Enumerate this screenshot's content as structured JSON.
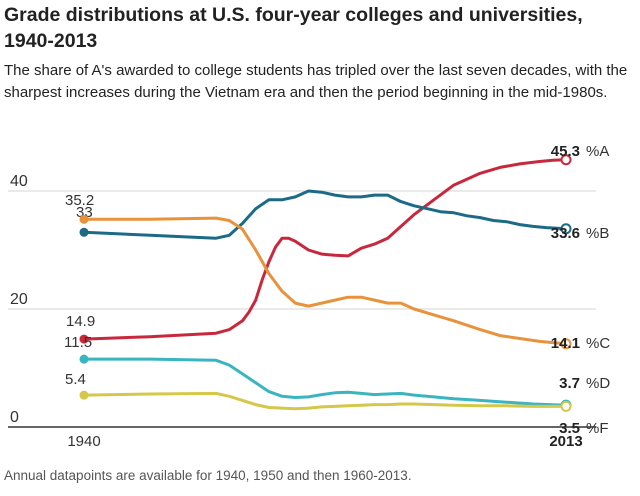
{
  "title": "Grade distributions at U.S. four-year colleges and universities, 1940-2013",
  "subtitle": "The share of A's awarded to college students has tripled over the last seven decades, with the sharpest increases during the Vietnam era and then the period beginning in the mid-1980s.",
  "footnote": "Annual datapoints are available for 1940, 1950 and then 1960-2013.",
  "chart_data": {
    "type": "line",
    "xlim": [
      1940,
      2013
    ],
    "ylim": [
      0,
      45
    ],
    "y_ticks": [
      "0",
      "20",
      "40"
    ],
    "x_tick_labels": {
      "start": "1940",
      "end": "2013"
    },
    "grid": "horizontal",
    "series": [
      {
        "name": "%A",
        "color": "#c8283c",
        "x": [
          1940,
          1950,
          1960,
          1962,
          1964,
          1965,
          1966,
          1967,
          1968,
          1969,
          1970,
          1971,
          1972,
          1974,
          1976,
          1978,
          1980,
          1982,
          1984,
          1986,
          1988,
          1990,
          1993,
          1996,
          2000,
          2003,
          2006,
          2009,
          2011,
          2013
        ],
        "y": [
          14.9,
          15.3,
          15.9,
          16.5,
          18,
          19.5,
          21.5,
          25,
          28,
          30.5,
          32,
          32,
          31.5,
          30,
          29.3,
          29.1,
          29,
          30.3,
          31,
          32,
          34,
          36,
          38.5,
          41,
          43,
          44,
          44.6,
          45,
          45.2,
          45.3
        ],
        "start_label": "14.9",
        "end_label": "45.3"
      },
      {
        "name": "%B",
        "color": "#1b6a86",
        "x": [
          1940,
          1950,
          1960,
          1962,
          1964,
          1966,
          1968,
          1970,
          1972,
          1974,
          1976,
          1978,
          1980,
          1982,
          1984,
          1986,
          1988,
          1990,
          1992,
          1994,
          1996,
          1998,
          2000,
          2002,
          2004,
          2006,
          2008,
          2010,
          2013
        ],
        "y": [
          33,
          32.5,
          32,
          32.5,
          34.5,
          37,
          38.5,
          38.5,
          39,
          40,
          39.8,
          39.3,
          39,
          39,
          39.3,
          39.3,
          38.2,
          37.5,
          37,
          36.5,
          36.3,
          35.8,
          35.5,
          35,
          34.8,
          34.3,
          34,
          33.8,
          33.6
        ],
        "start_label": "33",
        "end_label": "33.6"
      },
      {
        "name": "%C",
        "color": "#e8923c",
        "x": [
          1940,
          1950,
          1960,
          1962,
          1964,
          1966,
          1968,
          1970,
          1972,
          1974,
          1976,
          1978,
          1980,
          1982,
          1984,
          1986,
          1988,
          1990,
          1993,
          1996,
          2000,
          2003,
          2006,
          2009,
          2011,
          2013
        ],
        "y": [
          35.2,
          35.2,
          35.4,
          35,
          33.5,
          30,
          26,
          23,
          21,
          20.5,
          21,
          21.5,
          22,
          22,
          21.5,
          21,
          21,
          20,
          19,
          18,
          16.5,
          15.5,
          15,
          14.5,
          14.3,
          14.1
        ],
        "start_label": "35.2",
        "end_label": "14.1"
      },
      {
        "name": "%D",
        "color": "#3ab5c0",
        "x": [
          1940,
          1950,
          1960,
          1962,
          1964,
          1966,
          1968,
          1970,
          1972,
          1974,
          1976,
          1978,
          1980,
          1982,
          1984,
          1986,
          1988,
          1990,
          1993,
          1996,
          2000,
          2004,
          2008,
          2013
        ],
        "y": [
          11.5,
          11.5,
          11.3,
          10.5,
          9,
          7.5,
          6,
          5.2,
          5,
          5.1,
          5.5,
          5.8,
          5.9,
          5.7,
          5.5,
          5.6,
          5.7,
          5.4,
          5.1,
          4.8,
          4.5,
          4.2,
          3.9,
          3.7
        ],
        "start_label": "11.5",
        "end_label": "3.7"
      },
      {
        "name": "%F",
        "color": "#d4c84a",
        "x": [
          1940,
          1950,
          1960,
          1962,
          1964,
          1966,
          1968,
          1970,
          1972,
          1974,
          1976,
          1978,
          1980,
          1982,
          1984,
          1986,
          1988,
          1990,
          1993,
          1996,
          2000,
          2004,
          2008,
          2013
        ],
        "y": [
          5.4,
          5.6,
          5.7,
          5.2,
          4.5,
          3.8,
          3.3,
          3.2,
          3.1,
          3.2,
          3.4,
          3.5,
          3.6,
          3.7,
          3.8,
          3.8,
          3.9,
          3.9,
          3.8,
          3.7,
          3.6,
          3.6,
          3.5,
          3.5
        ],
        "start_label": "5.4",
        "end_label": "3.5"
      }
    ]
  }
}
